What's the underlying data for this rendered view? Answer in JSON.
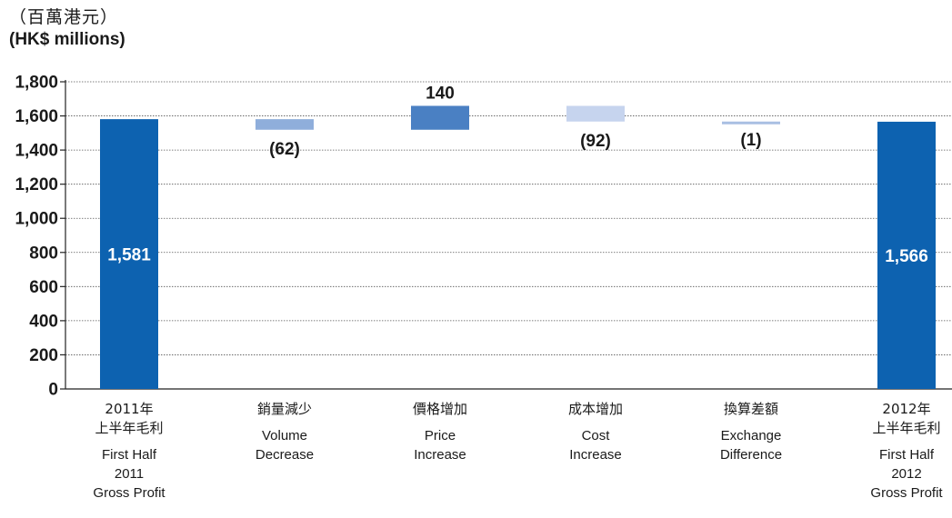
{
  "unit_label_zh": "（百萬港元）",
  "unit_label_en": "(HK$ millions)",
  "chart_data": {
    "type": "bar",
    "subtype": "waterfall",
    "ylim": [
      0,
      1800
    ],
    "yticks": [
      0,
      200,
      400,
      600,
      800,
      1000,
      1200,
      1400,
      1600,
      1800
    ],
    "ytick_labels": [
      "0",
      "200",
      "400",
      "600",
      "800",
      "1,000",
      "1,200",
      "1,400",
      "1,600",
      "1,800"
    ],
    "grid": true,
    "categories": [
      {
        "zh": "2011年\n上半年毛利",
        "en": "First Half\n2011\nGross Profit"
      },
      {
        "zh": "銷量減少",
        "en": "Volume\nDecrease"
      },
      {
        "zh": "價格增加",
        "en": "Price\nIncrease"
      },
      {
        "zh": "成本增加",
        "en": "Cost\nIncrease"
      },
      {
        "zh": "換算差額",
        "en": "Exchange\nDifference"
      },
      {
        "zh": "2012年\n上半年毛利",
        "en": "First Half\n2012\nGross Profit"
      }
    ],
    "bars": [
      {
        "kind": "total",
        "start": 0,
        "end": 1581,
        "label": "1,581",
        "color": "#0d62b0"
      },
      {
        "kind": "delta",
        "start": 1581,
        "end": 1519,
        "label": "(62)",
        "color": "#8faedb"
      },
      {
        "kind": "delta",
        "start": 1519,
        "end": 1659,
        "label": "140",
        "color": "#4a80c3"
      },
      {
        "kind": "delta",
        "start": 1659,
        "end": 1567,
        "label": "(92)",
        "color": "#c6d4ee"
      },
      {
        "kind": "delta",
        "start": 1567,
        "end": 1566,
        "label": "(1)",
        "color": "#a9bfe3"
      },
      {
        "kind": "total",
        "start": 0,
        "end": 1566,
        "label": "1,566",
        "color": "#0d62b0"
      }
    ]
  }
}
